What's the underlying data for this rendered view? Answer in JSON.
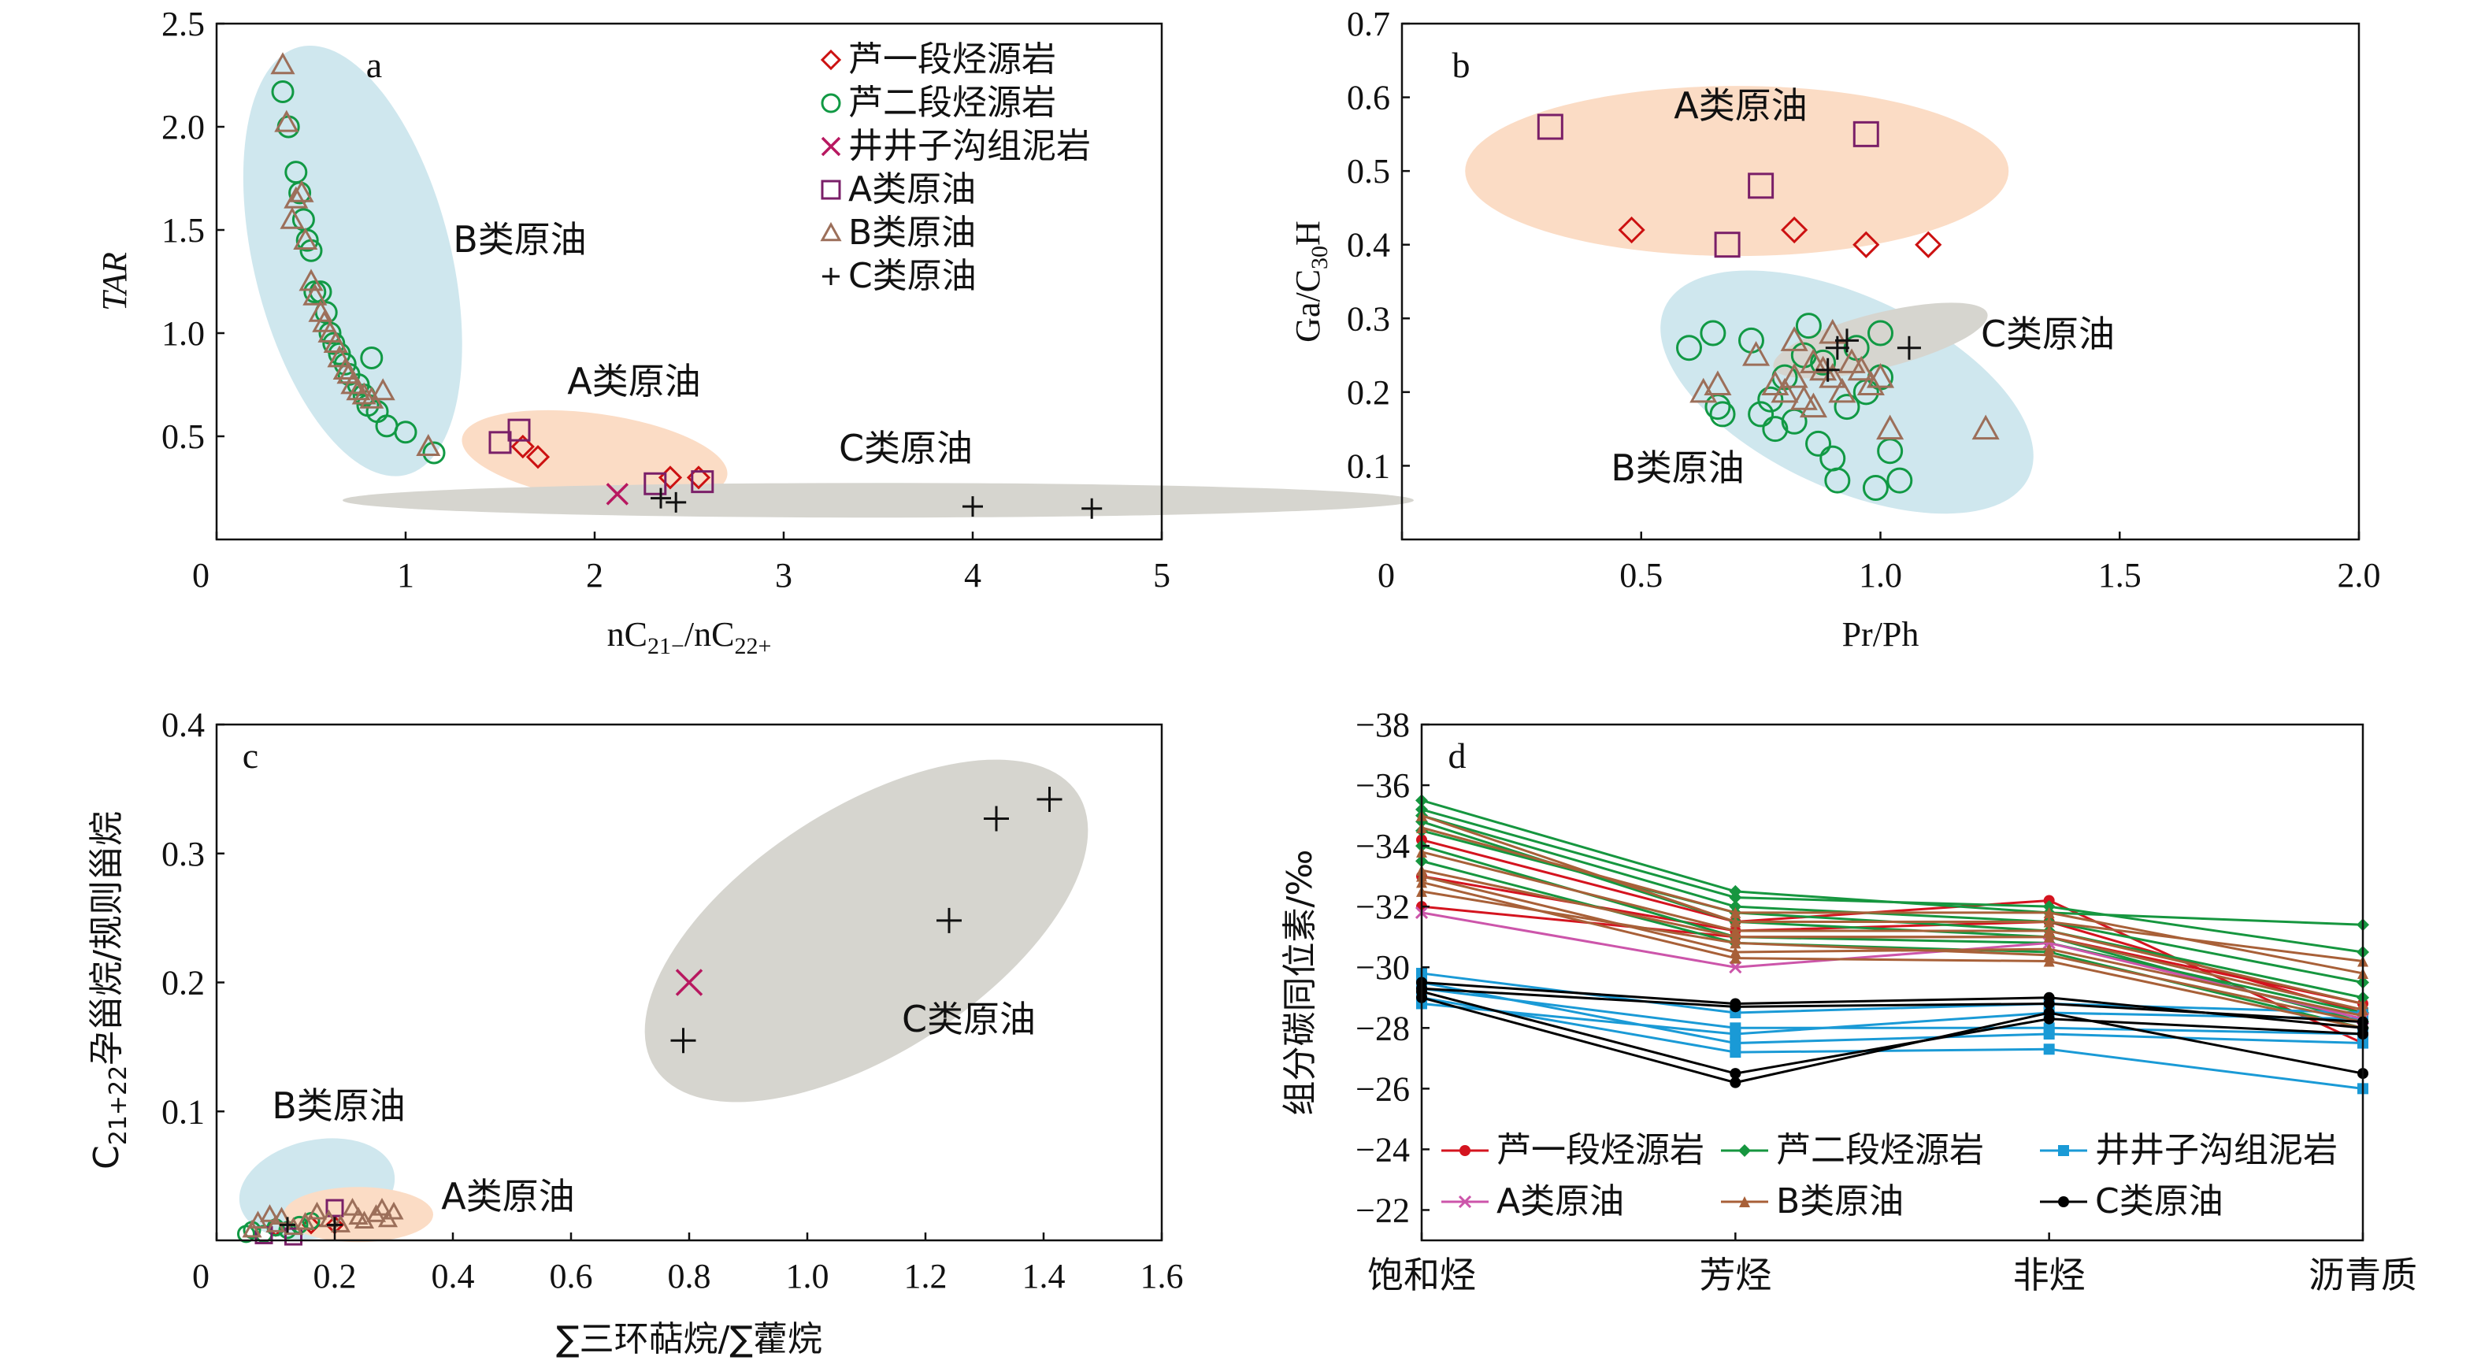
{
  "colors": {
    "lufirst": "#cc1111",
    "lusecond": "#119944",
    "jingjingzi": "#b81860",
    "oilA": "#7a1f68",
    "oilB": "#9c6f5a",
    "oilC": "#111111",
    "d_red": "#d4141f",
    "d_green": "#16963f",
    "d_blue": "#1a9ad6",
    "d_pink": "#cc55aa",
    "d_brown": "#a86038",
    "d_black": "#000000",
    "fill_blue": "#cfe7ee",
    "fill_orange": "#fbdcc5",
    "fill_gray": "#d6d5cf"
  },
  "chart_data": [
    {
      "panel": "a",
      "type": "scatter",
      "xlabel": "nC21-/nC22+",
      "ylabel": "TAR",
      "xlim": [
        0,
        5
      ],
      "ylim": [
        0,
        2.5
      ],
      "xticks": [
        "0",
        "1",
        "2",
        "3",
        "4",
        "5"
      ],
      "yticks": [
        "0.5",
        "1.0",
        "1.5",
        "2.0",
        "2.5"
      ],
      "legend": {
        "placement": "top-right",
        "entries": [
          {
            "marker": "◇",
            "label": "芦一段烃源岩"
          },
          {
            "marker": "○",
            "label": "芦二段烃源岩"
          },
          {
            "marker": "×",
            "label": "井井子沟组泥岩"
          },
          {
            "marker": "□",
            "label": "A类原油"
          },
          {
            "marker": "△",
            "label": "B类原油"
          },
          {
            "marker": "+",
            "label": "C类原油"
          }
        ]
      },
      "annotations": [
        "B类原油",
        "A类原油",
        "C类原油"
      ],
      "series": [
        {
          "name": "芦一段烃源岩",
          "marker": "diamond",
          "points": [
            [
              1.62,
              0.45
            ],
            [
              1.7,
              0.4
            ],
            [
              2.4,
              0.3
            ],
            [
              2.55,
              0.3
            ]
          ]
        },
        {
          "name": "芦二段烃源岩",
          "marker": "circle",
          "points": [
            [
              0.35,
              2.17
            ],
            [
              0.38,
              2.0
            ],
            [
              0.42,
              1.78
            ],
            [
              0.44,
              1.68
            ],
            [
              0.46,
              1.55
            ],
            [
              0.48,
              1.45
            ],
            [
              0.5,
              1.4
            ],
            [
              0.52,
              1.2
            ],
            [
              0.55,
              1.2
            ],
            [
              0.58,
              1.1
            ],
            [
              0.6,
              1.0
            ],
            [
              0.62,
              0.95
            ],
            [
              0.65,
              0.9
            ],
            [
              0.68,
              0.85
            ],
            [
              0.7,
              0.8
            ],
            [
              0.75,
              0.75
            ],
            [
              0.78,
              0.7
            ],
            [
              0.8,
              0.65
            ],
            [
              0.82,
              0.88
            ],
            [
              0.85,
              0.62
            ],
            [
              0.9,
              0.55
            ],
            [
              1.0,
              0.52
            ],
            [
              1.15,
              0.42
            ]
          ]
        },
        {
          "name": "井井子沟组泥岩",
          "marker": "x",
          "points": [
            [
              2.12,
              0.22
            ]
          ]
        },
        {
          "name": "A类原油",
          "marker": "square",
          "points": [
            [
              1.5,
              0.47
            ],
            [
              1.6,
              0.53
            ],
            [
              2.32,
              0.27
            ],
            [
              2.57,
              0.28
            ]
          ]
        },
        {
          "name": "B类原油",
          "marker": "triangle",
          "points": [
            [
              0.35,
              2.3
            ],
            [
              0.37,
              2.02
            ],
            [
              0.4,
              1.55
            ],
            [
              0.42,
              1.65
            ],
            [
              0.45,
              1.68
            ],
            [
              0.47,
              1.45
            ],
            [
              0.5,
              1.25
            ],
            [
              0.52,
              1.18
            ],
            [
              0.55,
              1.1
            ],
            [
              0.57,
              1.05
            ],
            [
              0.6,
              1.0
            ],
            [
              0.63,
              0.95
            ],
            [
              0.65,
              0.88
            ],
            [
              0.68,
              0.82
            ],
            [
              0.7,
              0.8
            ],
            [
              0.72,
              0.75
            ],
            [
              0.75,
              0.72
            ],
            [
              0.78,
              0.7
            ],
            [
              0.82,
              0.68
            ],
            [
              0.88,
              0.72
            ],
            [
              1.12,
              0.45
            ]
          ]
        },
        {
          "name": "C类原油",
          "marker": "plus",
          "points": [
            [
              2.35,
              0.2
            ],
            [
              2.43,
              0.18
            ],
            [
              4.0,
              0.16
            ],
            [
              4.63,
              0.15
            ]
          ]
        }
      ]
    },
    {
      "panel": "b",
      "type": "scatter",
      "xlabel": "Pr/Ph",
      "ylabel": "Ga/C30H",
      "xlim": [
        0,
        2.0
      ],
      "ylim": [
        0,
        0.7
      ],
      "xticks": [
        "0",
        "0.5",
        "1.0",
        "1.5",
        "2.0"
      ],
      "yticks": [
        "0.1",
        "0.2",
        "0.3",
        "0.4",
        "0.5",
        "0.6",
        "0.7"
      ],
      "annotations": [
        "A类原油",
        "C类原油",
        "B类原油"
      ],
      "series": [
        {
          "name": "芦一段烃源岩",
          "marker": "diamond",
          "points": [
            [
              0.48,
              0.42
            ],
            [
              0.82,
              0.42
            ],
            [
              0.97,
              0.4
            ],
            [
              1.1,
              0.4
            ]
          ]
        },
        {
          "name": "芦二段烃源岩",
          "marker": "circle",
          "points": [
            [
              0.6,
              0.26
            ],
            [
              0.65,
              0.28
            ],
            [
              0.66,
              0.18
            ],
            [
              0.67,
              0.17
            ],
            [
              0.73,
              0.27
            ],
            [
              0.75,
              0.17
            ],
            [
              0.77,
              0.19
            ],
            [
              0.78,
              0.15
            ],
            [
              0.8,
              0.22
            ],
            [
              0.82,
              0.16
            ],
            [
              0.84,
              0.25
            ],
            [
              0.85,
              0.29
            ],
            [
              0.87,
              0.13
            ],
            [
              0.88,
              0.24
            ],
            [
              0.9,
              0.11
            ],
            [
              0.91,
              0.08
            ],
            [
              0.93,
              0.18
            ],
            [
              0.95,
              0.26
            ],
            [
              0.97,
              0.2
            ],
            [
              0.99,
              0.07
            ],
            [
              1.0,
              0.28
            ],
            [
              1.02,
              0.12
            ],
            [
              1.04,
              0.08
            ],
            [
              1.0,
              0.22
            ]
          ]
        },
        {
          "name": "A类原油",
          "marker": "square",
          "points": [
            [
              0.31,
              0.56
            ],
            [
              0.68,
              0.4
            ],
            [
              0.75,
              0.48
            ],
            [
              0.97,
              0.55
            ]
          ]
        },
        {
          "name": "B类原油",
          "marker": "triangle",
          "points": [
            [
              0.63,
              0.2
            ],
            [
              0.66,
              0.21
            ],
            [
              0.74,
              0.25
            ],
            [
              0.78,
              0.21
            ],
            [
              0.8,
              0.2
            ],
            [
              0.82,
              0.27
            ],
            [
              0.82,
              0.22
            ],
            [
              0.84,
              0.19
            ],
            [
              0.86,
              0.24
            ],
            [
              0.86,
              0.18
            ],
            [
              0.88,
              0.23
            ],
            [
              0.9,
              0.28
            ],
            [
              0.9,
              0.22
            ],
            [
              0.92,
              0.2
            ],
            [
              0.94,
              0.24
            ],
            [
              0.96,
              0.23
            ],
            [
              0.98,
              0.21
            ],
            [
              1.0,
              0.22
            ],
            [
              1.02,
              0.15
            ],
            [
              1.22,
              0.15
            ]
          ]
        },
        {
          "name": "C类原油",
          "marker": "plus",
          "points": [
            [
              0.89,
              0.23
            ],
            [
              0.91,
              0.26
            ],
            [
              0.93,
              0.27
            ],
            [
              1.06,
              0.26
            ]
          ]
        }
      ]
    },
    {
      "panel": "c",
      "type": "scatter",
      "xlabel": "∑三环萜烷/∑藿烷",
      "ylabel": "C21+22孕甾烷/规则甾烷",
      "xlim": [
        0,
        1.6
      ],
      "ylim": [
        0,
        0.4
      ],
      "xticks": [
        "0",
        "0.2",
        "0.4",
        "0.6",
        "0.8",
        "1.0",
        "1.2",
        "1.4",
        "1.6"
      ],
      "yticks": [
        "0.1",
        "0.2",
        "0.3",
        "0.4"
      ],
      "annotations": [
        "B类原油",
        "A类原油",
        "C类原油"
      ],
      "series": [
        {
          "name": "芦一段烃源岩",
          "marker": "diamond",
          "points": [
            [
              0.1,
              0.01
            ],
            [
              0.16,
              0.012
            ],
            [
              0.2,
              0.012
            ]
          ]
        },
        {
          "name": "芦二段烃源岩",
          "marker": "circle",
          "points": [
            [
              0.05,
              0.005
            ],
            [
              0.06,
              0.008
            ],
            [
              0.08,
              0.005
            ],
            [
              0.1,
              0.01
            ],
            [
              0.12,
              0.008
            ],
            [
              0.14,
              0.012
            ],
            [
              0.16,
              0.015
            ]
          ]
        },
        {
          "name": "井井子沟组泥岩",
          "marker": "x",
          "points": [
            [
              0.8,
              0.2
            ]
          ]
        },
        {
          "name": "A类原油",
          "marker": "square",
          "points": [
            [
              0.08,
              0.004
            ],
            [
              0.13,
              0.003
            ],
            [
              0.2,
              0.025
            ]
          ]
        },
        {
          "name": "B类原油",
          "marker": "triangle",
          "points": [
            [
              0.06,
              0.008
            ],
            [
              0.07,
              0.015
            ],
            [
              0.09,
              0.02
            ],
            [
              0.1,
              0.012
            ],
            [
              0.11,
              0.018
            ],
            [
              0.13,
              0.01
            ],
            [
              0.15,
              0.014
            ],
            [
              0.17,
              0.022
            ],
            [
              0.19,
              0.016
            ],
            [
              0.21,
              0.012
            ],
            [
              0.23,
              0.025
            ],
            [
              0.24,
              0.018
            ],
            [
              0.25,
              0.015
            ],
            [
              0.27,
              0.02
            ],
            [
              0.28,
              0.025
            ],
            [
              0.29,
              0.016
            ],
            [
              0.3,
              0.022
            ]
          ]
        },
        {
          "name": "C类原油",
          "marker": "plus",
          "points": [
            [
              0.79,
              0.155
            ],
            [
              1.24,
              0.248
            ],
            [
              1.32,
              0.327
            ],
            [
              1.41,
              0.342
            ],
            [
              0.12,
              0.012
            ],
            [
              0.2,
              0.012
            ]
          ]
        }
      ]
    },
    {
      "panel": "d",
      "type": "line",
      "ylabel": "组分碳同位素/‰",
      "categories": [
        "饱和烃",
        "芳烃",
        "非烃",
        "沥青质"
      ],
      "ylim": [
        -38,
        -21
      ],
      "yticks": [
        "−22",
        "−24",
        "−26",
        "−28",
        "−30",
        "−32",
        "−34",
        "−36",
        "−38"
      ],
      "legend": {
        "placement": "bottom-left",
        "entries": [
          {
            "label": "芦一段烃源岩"
          },
          {
            "label": "芦二段烃源岩"
          },
          {
            "label": "井井子沟组泥岩"
          },
          {
            "label": "A类原油"
          },
          {
            "label": "B类原油"
          },
          {
            "label": "C类原油"
          }
        ]
      },
      "series": [
        {
          "name": "芦一段烃源岩",
          "lines": [
            [
              -34.2,
              -31.5,
              -32.2,
              -27.5
            ],
            [
              -32.0,
              -31.0,
              -31.0,
              -28.8
            ],
            [
              -33.0,
              -31.2,
              -31.5,
              -28.5
            ]
          ]
        },
        {
          "name": "芦二段烃源岩",
          "lines": [
            [
              -35.5,
              -32.5,
              -31.8,
              -31.4
            ],
            [
              -35.2,
              -32.3,
              -32.0,
              -30.5
            ],
            [
              -35.0,
              -32.0,
              -31.5,
              -29.5
            ],
            [
              -34.5,
              -31.8,
              -31.2,
              -29.0
            ],
            [
              -34.0,
              -31.0,
              -30.8,
              -28.5
            ],
            [
              -34.8,
              -31.5,
              -31.0,
              -28.2
            ],
            [
              -33.5,
              -30.8,
              -30.5,
              -28.0
            ]
          ]
        },
        {
          "name": "井井子沟组泥岩",
          "lines": [
            [
              -29.8,
              -28.5,
              -28.8,
              -28.5
            ],
            [
              -29.5,
              -27.5,
              -27.8,
              -27.5
            ],
            [
              -29.0,
              -27.2,
              -27.3,
              -26.0
            ],
            [
              -29.3,
              -28.0,
              -28.0,
              -27.8
            ],
            [
              -28.8,
              -27.8,
              -28.5,
              -28.3
            ]
          ]
        },
        {
          "name": "A类原油",
          "lines": [
            [
              -31.8,
              -30.0,
              -30.8,
              -28.3
            ]
          ]
        },
        {
          "name": "B类原油",
          "lines": [
            [
              -35.0,
              -31.5,
              -31.5,
              -30.2
            ],
            [
              -34.6,
              -31.8,
              -31.8,
              -29.8
            ],
            [
              -33.8,
              -31.2,
              -31.2,
              -28.8
            ],
            [
              -33.2,
              -31.0,
              -31.0,
              -28.6
            ],
            [
              -33.0,
              -30.5,
              -30.6,
              -28.4
            ],
            [
              -32.5,
              -30.8,
              -30.4,
              -28.2
            ],
            [
              -32.8,
              -30.3,
              -30.2,
              -28.0
            ]
          ]
        },
        {
          "name": "C类原油",
          "lines": [
            [
              -29.5,
              -28.8,
              -29.0,
              -28.0
            ],
            [
              -29.0,
              -26.2,
              -28.5,
              -26.5
            ],
            [
              -29.2,
              -26.5,
              -28.3,
              -27.8
            ],
            [
              -29.3,
              -28.7,
              -28.8,
              -28.2
            ]
          ]
        }
      ]
    }
  ]
}
